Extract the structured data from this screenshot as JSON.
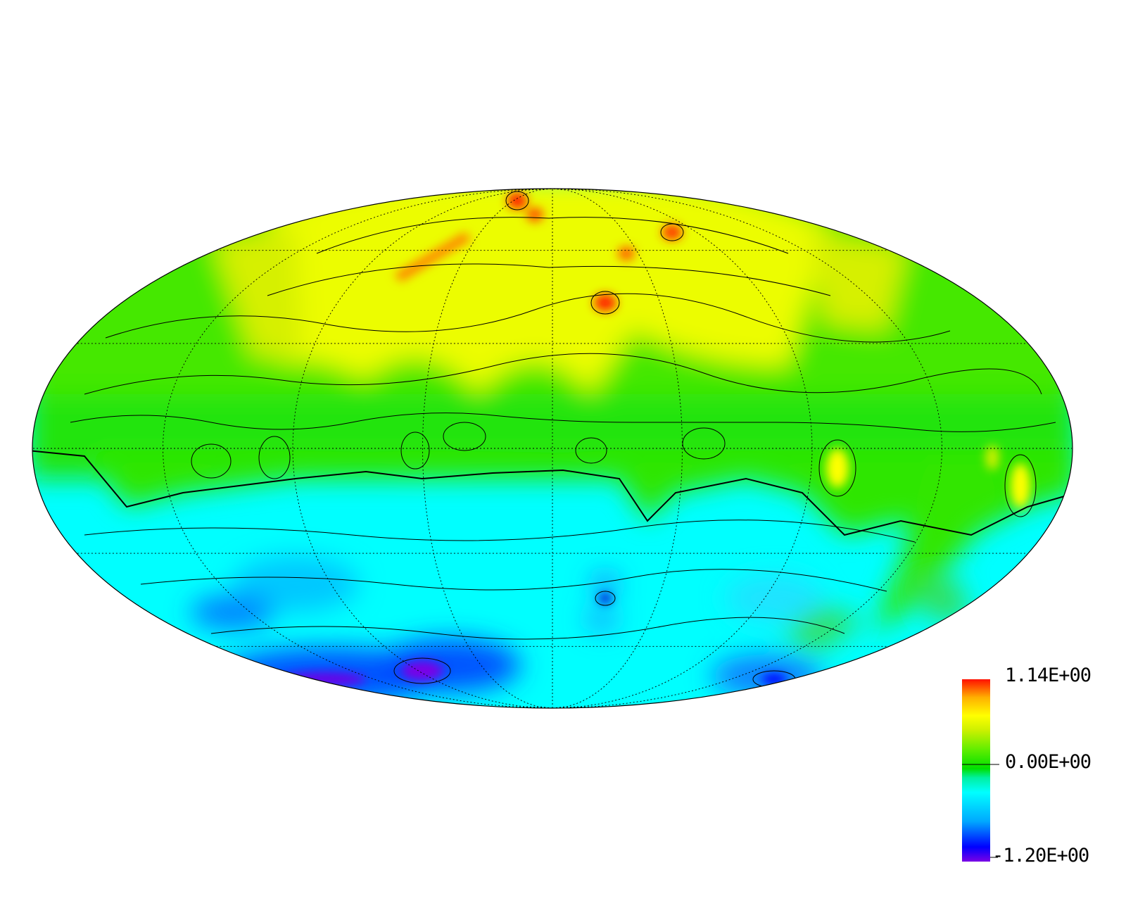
{
  "figure": {
    "projection": "mollweide",
    "graticule": {
      "latitude_step_deg": 30,
      "longitude_step_deg": 45
    }
  },
  "colorbar": {
    "max_label": "1.14E+00",
    "mid_label": "0.00E+00",
    "min_label": "-1.20E+00",
    "max_value": 1.14,
    "mid_value": 0.0,
    "min_value": -1.2,
    "colors": [
      "#7a00e6",
      "#0000ff",
      "#00a8ff",
      "#00ffff",
      "#00f0a0",
      "#00e000",
      "#66ee00",
      "#ccf000",
      "#ffff00",
      "#ffb000",
      "#ff5000",
      "#ff1000"
    ]
  },
  "chart_data": {
    "type": "heatmap",
    "projection": "mollweide",
    "value_range": [
      -1.2,
      1.14
    ],
    "zero_level": 0.0,
    "field_pattern": "positive values (green to yellow, red peaks) over northern hemisphere; negative values (cyan to blue, purple minima) over southern hemisphere",
    "extrema": [
      {
        "lon": -25,
        "lat": 82,
        "value": 1.1
      },
      {
        "lon": 10,
        "lat": 55,
        "value": 1.0
      },
      {
        "lon": 40,
        "lat": 72,
        "value": 1.0
      },
      {
        "lon": 20,
        "lat": 68,
        "value": 0.95
      },
      {
        "lon": 5,
        "lat": -35,
        "value": -0.9
      },
      {
        "lon": -60,
        "lat": -70,
        "value": -1.2
      },
      {
        "lon": 95,
        "lat": -68,
        "value": -1.0
      }
    ]
  }
}
